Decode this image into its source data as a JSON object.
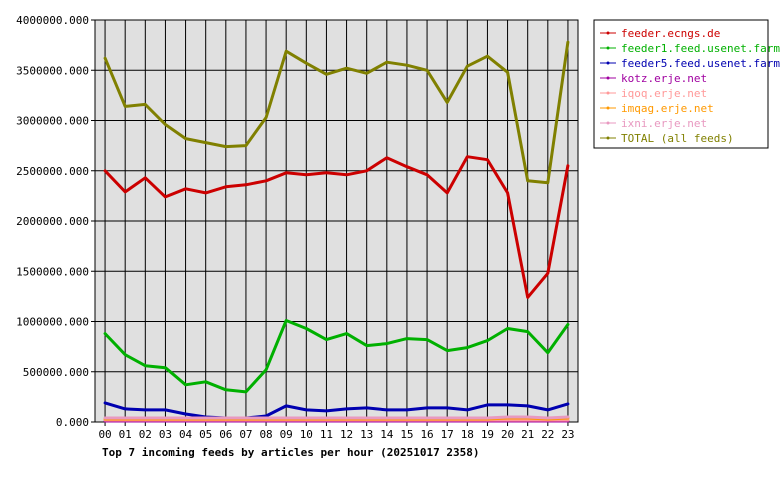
{
  "chart_data": {
    "type": "line",
    "title": "Top 7 incoming feeds by articles per hour (20251017 2358)",
    "xlabel": "",
    "ylabel": "",
    "ylim": [
      0,
      4000000
    ],
    "grid": true,
    "legend_position": "top-right",
    "plot_background": "#e0e0e0",
    "categories": [
      "00",
      "01",
      "02",
      "03",
      "04",
      "05",
      "06",
      "07",
      "08",
      "09",
      "10",
      "11",
      "12",
      "13",
      "14",
      "15",
      "16",
      "17",
      "18",
      "19",
      "20",
      "21",
      "22",
      "23"
    ],
    "y_ticks": [
      "0.000",
      "500000.000",
      "1000000.000",
      "1500000.000",
      "2000000.000",
      "2500000.000",
      "3000000.000",
      "3500000.000",
      "4000000.000"
    ],
    "y_tick_values": [
      0,
      500000,
      1000000,
      1500000,
      2000000,
      2500000,
      3000000,
      3500000,
      4000000
    ],
    "series": [
      {
        "name": "feeder.ecngs.de",
        "color": "#cc0000",
        "values": [
          2500000,
          2290000,
          2430000,
          2240000,
          2320000,
          2280000,
          2340000,
          2360000,
          2400000,
          2480000,
          2460000,
          2480000,
          2460000,
          2500000,
          2630000,
          2540000,
          2460000,
          2280000,
          2640000,
          2610000,
          2280000,
          1240000,
          1480000,
          2550000
        ]
      },
      {
        "name": "feeder1.feed.usenet.farm",
        "color": "#00b000",
        "values": [
          880000,
          670000,
          560000,
          540000,
          370000,
          400000,
          320000,
          300000,
          520000,
          1010000,
          930000,
          820000,
          880000,
          760000,
          780000,
          830000,
          820000,
          710000,
          740000,
          810000,
          930000,
          900000,
          690000,
          970000
        ]
      },
      {
        "name": "feeder5.feed.usenet.farm",
        "color": "#0000b0",
        "values": [
          190000,
          130000,
          120000,
          120000,
          80000,
          50000,
          40000,
          40000,
          60000,
          160000,
          120000,
          110000,
          130000,
          140000,
          120000,
          120000,
          140000,
          140000,
          120000,
          170000,
          170000,
          160000,
          120000,
          180000
        ]
      },
      {
        "name": "kotz.erje.net",
        "color": "#a000a0",
        "values": [
          10000,
          10000,
          10000,
          10000,
          10000,
          10000,
          10000,
          10000,
          10000,
          10000,
          10000,
          10000,
          10000,
          10000,
          10000,
          10000,
          10000,
          10000,
          10000,
          10000,
          10000,
          10000,
          10000,
          10000
        ]
      },
      {
        "name": "iqoq.erje.net",
        "color": "#ff9999",
        "values": [
          20000,
          20000,
          20000,
          20000,
          20000,
          20000,
          20000,
          20000,
          20000,
          20000,
          20000,
          20000,
          20000,
          20000,
          20000,
          20000,
          20000,
          20000,
          20000,
          20000,
          20000,
          20000,
          20000,
          20000
        ]
      },
      {
        "name": "imqag.erje.net",
        "color": "#ff9900",
        "values": [
          30000,
          30000,
          30000,
          30000,
          30000,
          30000,
          30000,
          30000,
          30000,
          30000,
          30000,
          30000,
          30000,
          30000,
          30000,
          30000,
          30000,
          30000,
          30000,
          30000,
          40000,
          40000,
          30000,
          40000
        ]
      },
      {
        "name": "ixni.erje.net",
        "color": "#e899c0",
        "values": [
          40000,
          40000,
          40000,
          40000,
          40000,
          40000,
          40000,
          40000,
          40000,
          40000,
          40000,
          40000,
          40000,
          40000,
          40000,
          40000,
          40000,
          40000,
          40000,
          40000,
          50000,
          50000,
          40000,
          50000
        ]
      },
      {
        "name": "TOTAL (all feeds)",
        "color": "#808000",
        "values": [
          3620000,
          3140000,
          3160000,
          2960000,
          2820000,
          2780000,
          2740000,
          2750000,
          3030000,
          3690000,
          3570000,
          3460000,
          3520000,
          3470000,
          3580000,
          3550000,
          3500000,
          3180000,
          3540000,
          3640000,
          3480000,
          2400000,
          2380000,
          3780000
        ]
      }
    ]
  }
}
